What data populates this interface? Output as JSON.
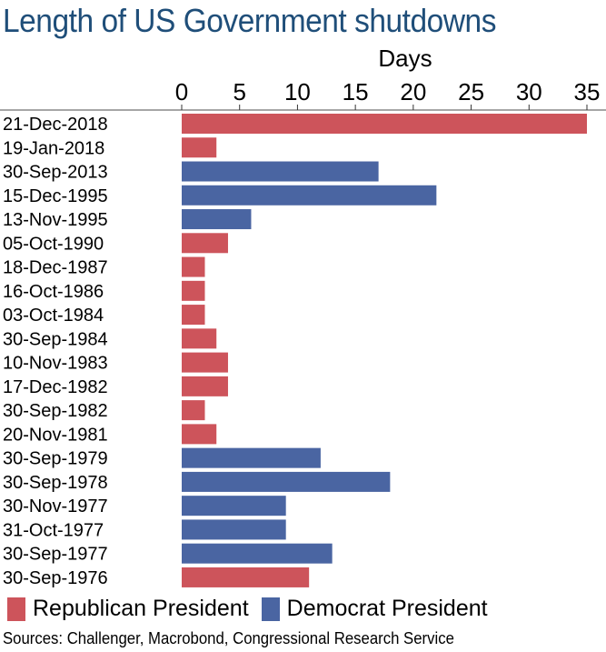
{
  "chart_data": {
    "type": "bar",
    "orientation": "horizontal",
    "title": "Length of US Government shutdowns",
    "xlabel": "Days",
    "ylabel": "",
    "xlim": [
      0,
      35
    ],
    "xticks": [
      0,
      5,
      10,
      15,
      20,
      25,
      30,
      35
    ],
    "categories": [
      "21-Dec-2018",
      "19-Jan-2018",
      "30-Sep-2013",
      "15-Dec-1995",
      "13-Nov-1995",
      "05-Oct-1990",
      "18-Dec-1987",
      "16-Oct-1986",
      "03-Oct-1984",
      "30-Sep-1984",
      "10-Nov-1983",
      "17-Dec-1982",
      "30-Sep-1982",
      "20-Nov-1981",
      "30-Sep-1979",
      "30-Sep-1978",
      "30-Nov-1977",
      "31-Oct-1977",
      "30-Sep-1977",
      "30-Sep-1976"
    ],
    "values": [
      35,
      3,
      17,
      22,
      6,
      4,
      2,
      2,
      2,
      3,
      4,
      4,
      2,
      3,
      12,
      18,
      9,
      9,
      13,
      11
    ],
    "party": [
      "R",
      "R",
      "D",
      "D",
      "D",
      "R",
      "R",
      "R",
      "R",
      "R",
      "R",
      "R",
      "R",
      "R",
      "D",
      "D",
      "D",
      "D",
      "D",
      "R"
    ],
    "legend": [
      {
        "key": "R",
        "label": "Republican President",
        "color": "#cd545b"
      },
      {
        "key": "D",
        "label": "Democrat President",
        "color": "#4a65a2"
      }
    ],
    "legend_position": "bottom-left",
    "grid": false,
    "source": "Sources: Challenger, Macrobond, Congressional Research Service"
  },
  "colors": {
    "title": "#1f4e79",
    "axis": "#a6a6a6"
  }
}
